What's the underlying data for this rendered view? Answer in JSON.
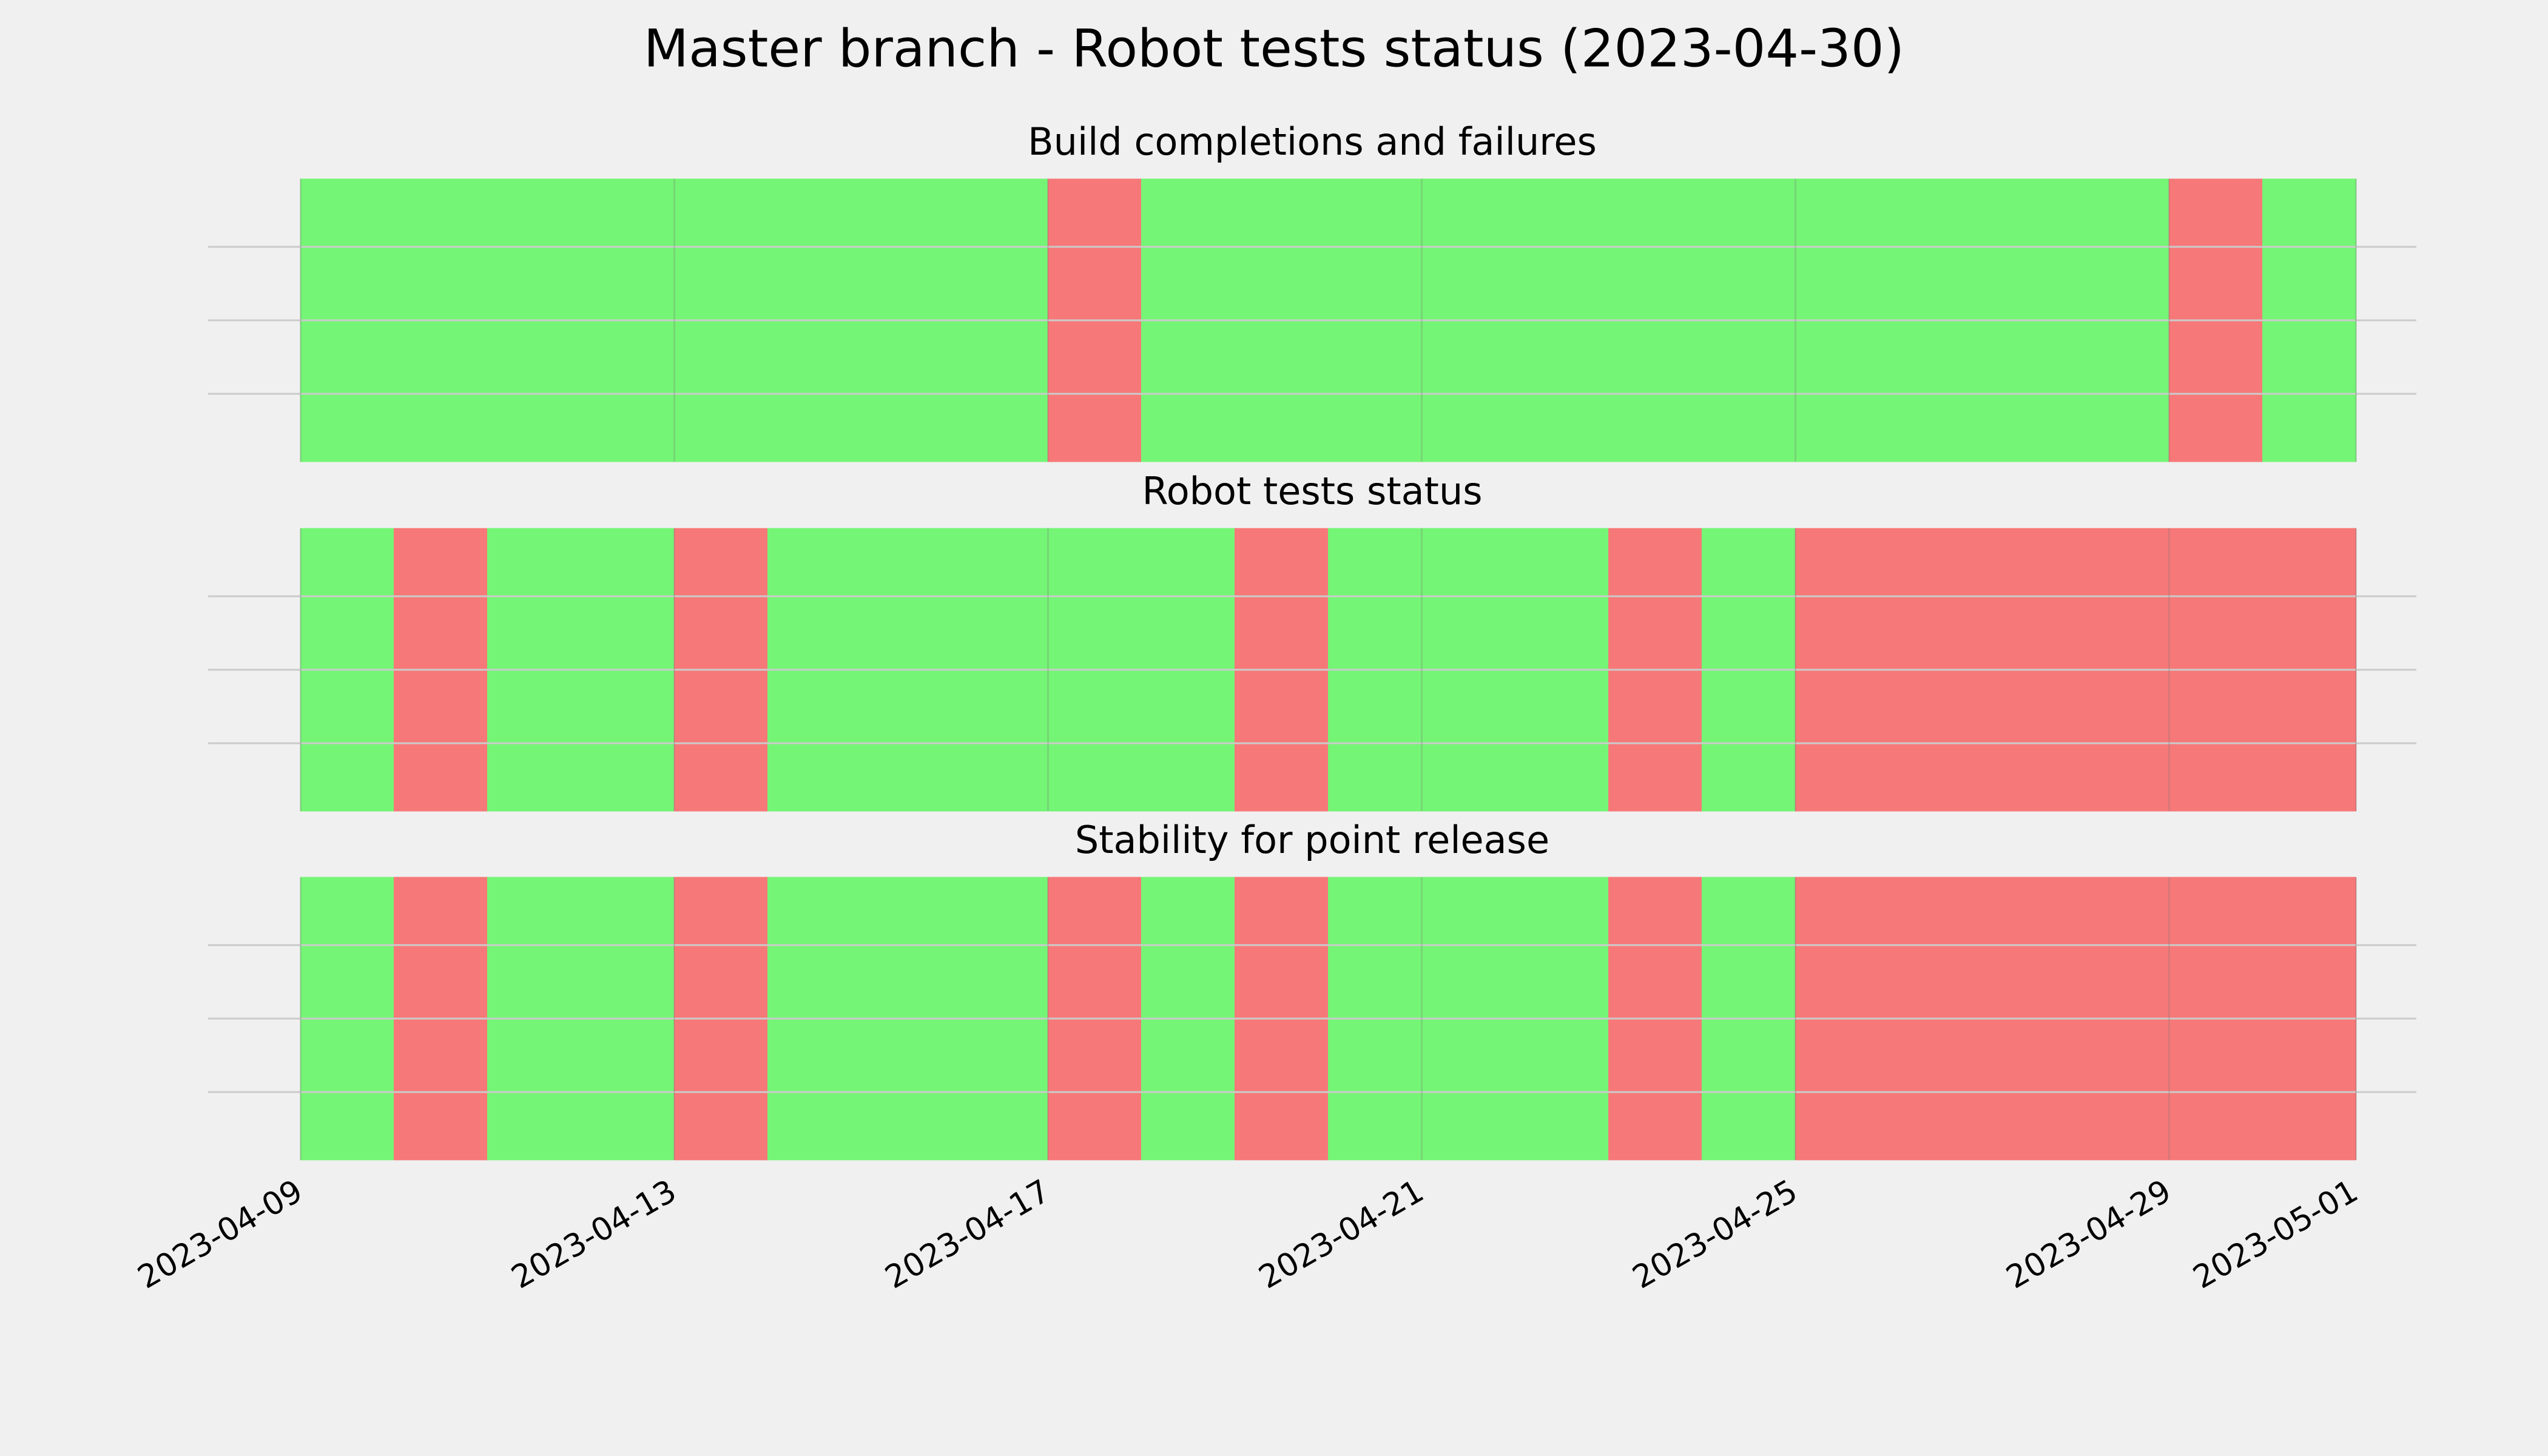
{
  "title": "Master branch - Robot tests status (2023-04-30)",
  "chart_data": [
    {
      "type": "timeline",
      "title": "Build completions and failures",
      "x": [
        "2023-04-09",
        "2023-04-10",
        "2023-04-11",
        "2023-04-12",
        "2023-04-13",
        "2023-04-14",
        "2023-04-15",
        "2023-04-16",
        "2023-04-17",
        "2023-04-18",
        "2023-04-19",
        "2023-04-20",
        "2023-04-21",
        "2023-04-22",
        "2023-04-23",
        "2023-04-24",
        "2023-04-25",
        "2023-04-26",
        "2023-04-27",
        "2023-04-28",
        "2023-04-29",
        "2023-04-30"
      ],
      "values": [
        1,
        1,
        1,
        1,
        1,
        1,
        1,
        1,
        0,
        1,
        1,
        1,
        1,
        1,
        1,
        1,
        1,
        1,
        1,
        1,
        0,
        1
      ],
      "colors": [
        "#f77878",
        "#75f575"
      ],
      "xticks": [
        "2023-04-09",
        "2023-04-13",
        "2023-04-17",
        "2023-04-21",
        "2023-04-25",
        "2023-04-29",
        "2023-05-01"
      ],
      "grid": true
    },
    {
      "type": "timeline",
      "title": "Robot tests status",
      "x": [
        "2023-04-09",
        "2023-04-10",
        "2023-04-11",
        "2023-04-12",
        "2023-04-13",
        "2023-04-14",
        "2023-04-15",
        "2023-04-16",
        "2023-04-17",
        "2023-04-18",
        "2023-04-19",
        "2023-04-20",
        "2023-04-21",
        "2023-04-22",
        "2023-04-23",
        "2023-04-24",
        "2023-04-25",
        "2023-04-26",
        "2023-04-27",
        "2023-04-28",
        "2023-04-29",
        "2023-04-30"
      ],
      "values": [
        1,
        0,
        1,
        1,
        0,
        1,
        1,
        1,
        1,
        1,
        0,
        1,
        1,
        1,
        0,
        1,
        0,
        0,
        0,
        0,
        0,
        0
      ],
      "colors": [
        "#f77878",
        "#75f575"
      ],
      "xticks": [
        "2023-04-09",
        "2023-04-13",
        "2023-04-17",
        "2023-04-21",
        "2023-04-25",
        "2023-04-29",
        "2023-05-01"
      ],
      "grid": true
    },
    {
      "type": "timeline",
      "title": "Stability for point release",
      "x": [
        "2023-04-09",
        "2023-04-10",
        "2023-04-11",
        "2023-04-12",
        "2023-04-13",
        "2023-04-14",
        "2023-04-15",
        "2023-04-16",
        "2023-04-17",
        "2023-04-18",
        "2023-04-19",
        "2023-04-20",
        "2023-04-21",
        "2023-04-22",
        "2023-04-23",
        "2023-04-24",
        "2023-04-25",
        "2023-04-26",
        "2023-04-27",
        "2023-04-28",
        "2023-04-29",
        "2023-04-30"
      ],
      "values": [
        1,
        0,
        1,
        1,
        0,
        1,
        1,
        1,
        0,
        1,
        0,
        1,
        1,
        1,
        0,
        1,
        0,
        0,
        0,
        0,
        0,
        0
      ],
      "colors": [
        "#f77878",
        "#75f575"
      ],
      "xticks": [
        "2023-04-09",
        "2023-04-13",
        "2023-04-17",
        "2023-04-21",
        "2023-04-25",
        "2023-04-29",
        "2023-05-01"
      ],
      "grid": true
    }
  ]
}
